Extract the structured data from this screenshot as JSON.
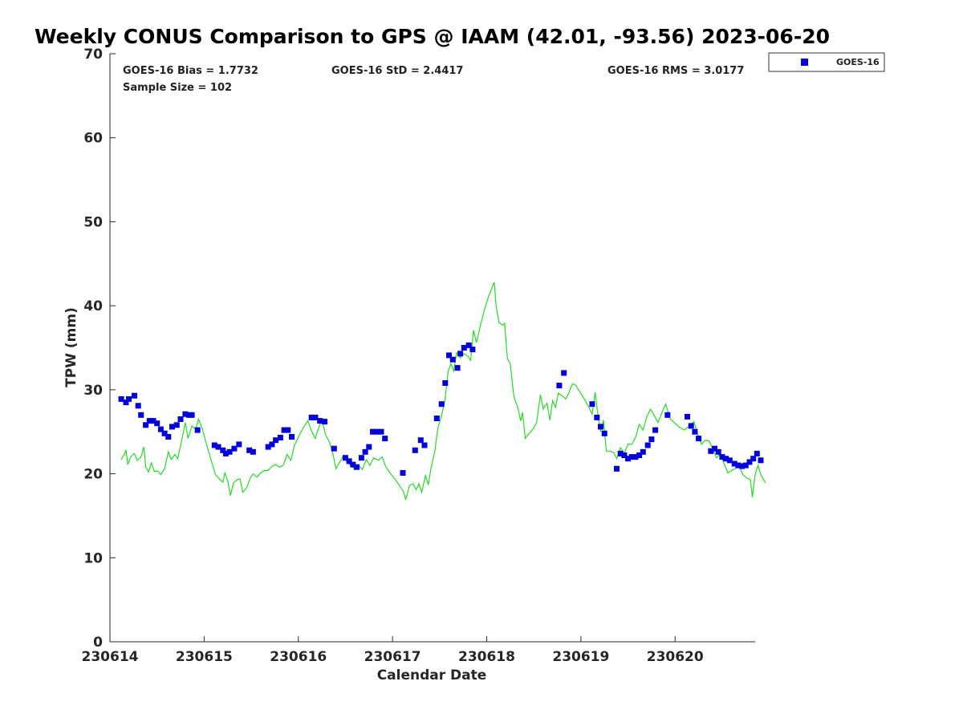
{
  "chart_data": {
    "type": "scatter",
    "title": "Weekly CONUS Comparison to GPS @ IAAM (42.01, -93.56) 2023-06-20",
    "xlabel": "Calendar Date",
    "ylabel": "TPW (mm)",
    "xlim": [
      230614,
      230620.85
    ],
    "ylim": [
      0,
      70
    ],
    "x_ticks": [
      230614,
      230615,
      230616,
      230617,
      230618,
      230619,
      230620
    ],
    "y_ticks": [
      0,
      10,
      20,
      30,
      40,
      50,
      60,
      70
    ],
    "grid": false,
    "legend_position": "top-right, outside plot",
    "stats": {
      "bias": "GOES-16 Bias = 1.7732",
      "std": "GOES-16 StD = 2.4417",
      "rms": "GOES-16 RMS = 3.0177",
      "sample": "Sample Size = 102"
    },
    "series": [
      {
        "name": "GOES-16",
        "style": "markers",
        "color": "#0000dd",
        "points": [
          [
            230614.12,
            28.9
          ],
          [
            230614.17,
            28.5
          ],
          [
            230614.2,
            28.9
          ],
          [
            230614.26,
            29.3
          ],
          [
            230614.3,
            28.1
          ],
          [
            230614.33,
            27.0
          ],
          [
            230614.38,
            25.8
          ],
          [
            230614.42,
            26.3
          ],
          [
            230614.46,
            26.3
          ],
          [
            230614.5,
            26.0
          ],
          [
            230614.54,
            25.3
          ],
          [
            230614.58,
            24.8
          ],
          [
            230614.62,
            24.4
          ],
          [
            230614.66,
            25.6
          ],
          [
            230614.71,
            25.8
          ],
          [
            230614.75,
            26.5
          ],
          [
            230614.8,
            27.1
          ],
          [
            230614.84,
            27.0
          ],
          [
            230614.87,
            27.0
          ],
          [
            230614.93,
            25.2
          ],
          [
            230615.11,
            23.4
          ],
          [
            230615.15,
            23.2
          ],
          [
            230615.2,
            22.8
          ],
          [
            230615.23,
            22.4
          ],
          [
            230615.27,
            22.6
          ],
          [
            230615.32,
            23.0
          ],
          [
            230615.37,
            23.5
          ],
          [
            230615.48,
            22.8
          ],
          [
            230615.52,
            22.6
          ],
          [
            230615.68,
            23.2
          ],
          [
            230615.72,
            23.5
          ],
          [
            230615.76,
            24.0
          ],
          [
            230615.81,
            24.3
          ],
          [
            230615.85,
            25.2
          ],
          [
            230615.89,
            25.2
          ],
          [
            230615.93,
            24.4
          ],
          [
            230616.14,
            26.7
          ],
          [
            230616.18,
            26.7
          ],
          [
            230616.23,
            26.3
          ],
          [
            230616.28,
            26.2
          ],
          [
            230616.38,
            23.0
          ],
          [
            230616.5,
            21.9
          ],
          [
            230616.54,
            21.5
          ],
          [
            230616.58,
            21.1
          ],
          [
            230616.62,
            20.8
          ],
          [
            230616.67,
            21.9
          ],
          [
            230616.71,
            22.6
          ],
          [
            230616.75,
            23.2
          ],
          [
            230616.79,
            25.0
          ],
          [
            230616.83,
            25.0
          ],
          [
            230616.88,
            25.0
          ],
          [
            230616.92,
            24.2
          ],
          [
            230617.11,
            20.1
          ],
          [
            230617.24,
            22.8
          ],
          [
            230617.3,
            24.0
          ],
          [
            230617.34,
            23.4
          ],
          [
            230617.47,
            26.6
          ],
          [
            230617.52,
            28.3
          ],
          [
            230617.56,
            30.8
          ],
          [
            230617.6,
            34.1
          ],
          [
            230617.64,
            33.6
          ],
          [
            230617.69,
            32.6
          ],
          [
            230617.72,
            34.3
          ],
          [
            230617.76,
            35.0
          ],
          [
            230617.81,
            35.3
          ],
          [
            230617.85,
            34.8
          ],
          [
            230618.77,
            30.5
          ],
          [
            230618.82,
            32.0
          ],
          [
            230619.12,
            28.3
          ],
          [
            230619.17,
            26.7
          ],
          [
            230619.21,
            25.6
          ],
          [
            230619.25,
            24.8
          ],
          [
            230619.38,
            20.6
          ],
          [
            230619.42,
            22.4
          ],
          [
            230619.46,
            22.2
          ],
          [
            230619.5,
            21.8
          ],
          [
            230619.54,
            22.0
          ],
          [
            230619.58,
            22.0
          ],
          [
            230619.62,
            22.2
          ],
          [
            230619.66,
            22.6
          ],
          [
            230619.71,
            23.4
          ],
          [
            230619.75,
            24.1
          ],
          [
            230619.79,
            25.2
          ],
          [
            230619.92,
            27.0
          ],
          [
            230620.13,
            26.8
          ],
          [
            230620.17,
            25.7
          ],
          [
            230620.21,
            25.0
          ],
          [
            230620.25,
            24.2
          ],
          [
            230620.38,
            22.7
          ],
          [
            230620.42,
            23.0
          ],
          [
            230620.46,
            22.6
          ],
          [
            230620.5,
            22.0
          ],
          [
            230620.54,
            21.8
          ],
          [
            230620.58,
            21.6
          ],
          [
            230620.63,
            21.2
          ],
          [
            230620.67,
            21.0
          ],
          [
            230620.71,
            20.9
          ],
          [
            230620.75,
            21.0
          ],
          [
            230620.79,
            21.4
          ],
          [
            230620.83,
            21.8
          ],
          [
            230620.87,
            22.4
          ],
          [
            230620.91,
            21.6
          ]
        ]
      },
      {
        "style": "line",
        "color": "#22dd22",
        "points": [
          [
            230614.12,
            21.7
          ],
          [
            230614.15,
            22.3
          ],
          [
            230614.17,
            22.8
          ],
          [
            230614.19,
            21.1
          ],
          [
            230614.22,
            22.0
          ],
          [
            230614.26,
            22.4
          ],
          [
            230614.29,
            21.6
          ],
          [
            230614.33,
            22.0
          ],
          [
            230614.36,
            23.2
          ],
          [
            230614.38,
            20.8
          ],
          [
            230614.41,
            20.2
          ],
          [
            230614.44,
            21.3
          ],
          [
            230614.47,
            20.3
          ],
          [
            230614.51,
            20.3
          ],
          [
            230614.54,
            19.9
          ],
          [
            230614.58,
            20.6
          ],
          [
            230614.62,
            22.6
          ],
          [
            230614.65,
            21.7
          ],
          [
            230614.69,
            22.3
          ],
          [
            230614.72,
            21.8
          ],
          [
            230614.76,
            23.9
          ],
          [
            230614.8,
            26.1
          ],
          [
            230614.83,
            24.2
          ],
          [
            230614.87,
            25.7
          ],
          [
            230614.91,
            25.3
          ],
          [
            230614.94,
            26.5
          ],
          [
            230614.98,
            25.4
          ],
          [
            230615.03,
            23.3
          ],
          [
            230615.08,
            21.4
          ],
          [
            230615.12,
            19.9
          ],
          [
            230615.16,
            19.4
          ],
          [
            230615.2,
            19.0
          ],
          [
            230615.22,
            20.1
          ],
          [
            230615.25,
            19.2
          ],
          [
            230615.28,
            17.4
          ],
          [
            230615.31,
            18.9
          ],
          [
            230615.35,
            19.3
          ],
          [
            230615.38,
            19.4
          ],
          [
            230615.41,
            17.8
          ],
          [
            230615.45,
            18.3
          ],
          [
            230615.49,
            19.5
          ],
          [
            230615.52,
            20.0
          ],
          [
            230615.56,
            19.6
          ],
          [
            230615.6,
            20.1
          ],
          [
            230615.64,
            20.4
          ],
          [
            230615.68,
            20.4
          ],
          [
            230615.72,
            20.9
          ],
          [
            230615.76,
            21.1
          ],
          [
            230615.8,
            20.8
          ],
          [
            230615.84,
            21.0
          ],
          [
            230615.88,
            22.3
          ],
          [
            230615.92,
            21.6
          ],
          [
            230615.96,
            23.4
          ],
          [
            230616.01,
            24.6
          ],
          [
            230616.06,
            25.6
          ],
          [
            230616.1,
            26.3
          ],
          [
            230616.14,
            25.1
          ],
          [
            230616.18,
            24.2
          ],
          [
            230616.22,
            25.6
          ],
          [
            230616.25,
            26.5
          ],
          [
            230616.29,
            24.6
          ],
          [
            230616.33,
            23.8
          ],
          [
            230616.37,
            22.2
          ],
          [
            230616.4,
            20.6
          ],
          [
            230616.44,
            21.4
          ],
          [
            230616.48,
            22.2
          ],
          [
            230616.52,
            21.3
          ],
          [
            230616.56,
            21.0
          ],
          [
            230616.6,
            20.5
          ],
          [
            230616.64,
            21.0
          ],
          [
            230616.68,
            20.5
          ],
          [
            230616.72,
            21.7
          ],
          [
            230616.76,
            21.0
          ],
          [
            230616.8,
            21.9
          ],
          [
            230616.85,
            21.6
          ],
          [
            230616.89,
            22.0
          ],
          [
            230616.93,
            20.8
          ],
          [
            230616.98,
            20.0
          ],
          [
            230617.03,
            19.3
          ],
          [
            230617.08,
            18.5
          ],
          [
            230617.12,
            17.8
          ],
          [
            230617.14,
            16.9
          ],
          [
            230617.18,
            18.6
          ],
          [
            230617.22,
            18.8
          ],
          [
            230617.25,
            18.1
          ],
          [
            230617.28,
            18.8
          ],
          [
            230617.31,
            17.8
          ],
          [
            230617.35,
            19.8
          ],
          [
            230617.38,
            18.7
          ],
          [
            230617.41,
            20.7
          ],
          [
            230617.45,
            22.7
          ],
          [
            230617.48,
            25.4
          ],
          [
            230617.52,
            26.9
          ],
          [
            230617.56,
            28.9
          ],
          [
            230617.59,
            32.2
          ],
          [
            230617.62,
            33.1
          ],
          [
            230617.65,
            32.2
          ],
          [
            230617.68,
            34.4
          ],
          [
            230617.72,
            33.8
          ],
          [
            230617.76,
            34.3
          ],
          [
            230617.8,
            34.0
          ],
          [
            230617.83,
            33.5
          ],
          [
            230617.86,
            37.1
          ],
          [
            230617.89,
            35.6
          ],
          [
            230617.93,
            37.5
          ],
          [
            230617.97,
            39.3
          ],
          [
            230618.02,
            41.1
          ],
          [
            230618.08,
            42.8
          ],
          [
            230618.1,
            40.0
          ],
          [
            230618.13,
            38.0
          ],
          [
            230618.17,
            37.7
          ],
          [
            230618.19,
            37.9
          ],
          [
            230618.22,
            33.7
          ],
          [
            230618.25,
            33.1
          ],
          [
            230618.29,
            29.1
          ],
          [
            230618.33,
            27.9
          ],
          [
            230618.36,
            26.3
          ],
          [
            230618.38,
            27.3
          ],
          [
            230618.41,
            24.2
          ],
          [
            230618.45,
            24.8
          ],
          [
            230618.49,
            25.3
          ],
          [
            230618.53,
            26.1
          ],
          [
            230618.57,
            29.4
          ],
          [
            230618.6,
            27.7
          ],
          [
            230618.64,
            28.4
          ],
          [
            230618.67,
            26.4
          ],
          [
            230618.7,
            28.7
          ],
          [
            230618.73,
            27.9
          ],
          [
            230618.76,
            29.6
          ],
          [
            230618.8,
            29.3
          ],
          [
            230618.84,
            28.9
          ],
          [
            230618.87,
            29.6
          ],
          [
            230618.91,
            30.7
          ],
          [
            230618.94,
            30.6
          ],
          [
            230618.98,
            29.9
          ],
          [
            230619.03,
            29.0
          ],
          [
            230619.08,
            28.0
          ],
          [
            230619.12,
            27.1
          ],
          [
            230619.15,
            29.7
          ],
          [
            230619.18,
            27.1
          ],
          [
            230619.21,
            25.0
          ],
          [
            230619.24,
            26.4
          ],
          [
            230619.27,
            22.7
          ],
          [
            230619.31,
            22.7
          ],
          [
            230619.35,
            22.5
          ],
          [
            230619.38,
            21.8
          ],
          [
            230619.42,
            23.1
          ],
          [
            230619.46,
            22.4
          ],
          [
            230619.5,
            23.5
          ],
          [
            230619.54,
            23.5
          ],
          [
            230619.58,
            24.3
          ],
          [
            230619.62,
            25.9
          ],
          [
            230619.66,
            25.2
          ],
          [
            230619.7,
            26.8
          ],
          [
            230619.74,
            27.7
          ],
          [
            230619.78,
            26.9
          ],
          [
            230619.82,
            26.1
          ],
          [
            230619.86,
            27.3
          ],
          [
            230619.9,
            28.3
          ],
          [
            230619.95,
            26.5
          ],
          [
            230620.0,
            26.0
          ],
          [
            230620.05,
            25.5
          ],
          [
            230620.1,
            25.2
          ],
          [
            230620.15,
            25.7
          ],
          [
            230620.2,
            26.2
          ],
          [
            230620.24,
            24.7
          ],
          [
            230620.28,
            23.5
          ],
          [
            230620.32,
            24.0
          ],
          [
            230620.36,
            23.9
          ],
          [
            230620.4,
            23.0
          ],
          [
            230620.44,
            21.9
          ],
          [
            230620.48,
            22.4
          ],
          [
            230620.52,
            21.2
          ],
          [
            230620.56,
            20.1
          ],
          [
            230620.6,
            20.4
          ],
          [
            230620.64,
            20.6
          ],
          [
            230620.68,
            21.0
          ],
          [
            230620.72,
            19.9
          ],
          [
            230620.76,
            19.5
          ],
          [
            230620.8,
            19.3
          ],
          [
            230620.82,
            17.2
          ],
          [
            230620.85,
            19.9
          ],
          [
            230620.88,
            21.0
          ],
          [
            230620.91,
            19.9
          ],
          [
            230620.94,
            19.3
          ],
          [
            230620.96,
            18.9
          ]
        ]
      }
    ]
  }
}
